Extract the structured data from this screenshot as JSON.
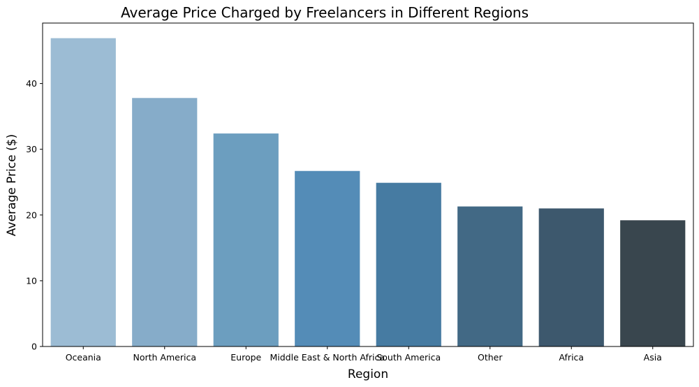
{
  "chart_data": {
    "type": "bar",
    "title": "Average Price Charged by Freelancers in Different Regions",
    "xlabel": "Region",
    "ylabel": "Average Price ($)",
    "categories": [
      "Oceania",
      "North America",
      "Europe",
      "Middle East & North Africa",
      "South America",
      "Other",
      "Africa",
      "Asia"
    ],
    "values": [
      46.9,
      37.8,
      32.4,
      26.7,
      24.9,
      21.3,
      21.0,
      19.2
    ],
    "colors": [
      "#9cbcd4",
      "#86acc9",
      "#6c9ebf",
      "#548cb7",
      "#467ba2",
      "#426985",
      "#3d586d",
      "#39464e"
    ],
    "ylim": [
      0,
      49.2
    ],
    "yticks": [
      0,
      10,
      20,
      30,
      40
    ],
    "grid": false,
    "legend": "none"
  }
}
